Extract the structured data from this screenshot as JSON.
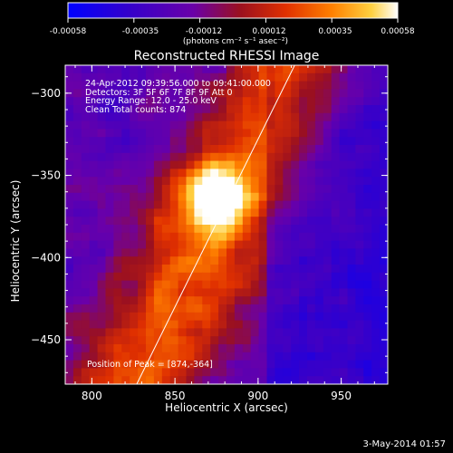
{
  "colorbar": {
    "ticks": [
      "-0.00058",
      "-0.00035",
      "-0.00012",
      "0.00012",
      "0.00035",
      "0.00058"
    ],
    "unit_label": "(photons cm⁻² s⁻¹ asec⁻²)",
    "colors": [
      "#0000ff",
      "#2200cc",
      "#6a00a8",
      "#a01818",
      "#e03000",
      "#ff7a00",
      "#ffc000",
      "#ffffff"
    ]
  },
  "chart_data": {
    "type": "heatmap",
    "title": "Reconstructed RHESSI Image",
    "xlabel": "Heliocentric X (arcsec)",
    "ylabel": "Heliocentric Y (arcsec)",
    "xlim": [
      784,
      978
    ],
    "ylim": [
      -477,
      -283
    ],
    "xticks": [
      800,
      850,
      900,
      950
    ],
    "yticks": [
      -300,
      -350,
      -400,
      -450
    ],
    "peak": [
      874,
      -364
    ],
    "limb_line": [
      [
        827,
        -477
      ],
      [
        922,
        -283
      ]
    ],
    "annotations": [
      "24-Apr-2012 09:39:56.000 to 09:41:00.000",
      "Detectors: 3F 5F 6F 7F 8F 9F  Att 0",
      "Energy Range: 12.0 - 25.0 keV",
      "Clean    Total counts: 874",
      "Position of Peak = [874,-364]"
    ]
  },
  "footer": {
    "date": "3-May-2014 01:57"
  }
}
